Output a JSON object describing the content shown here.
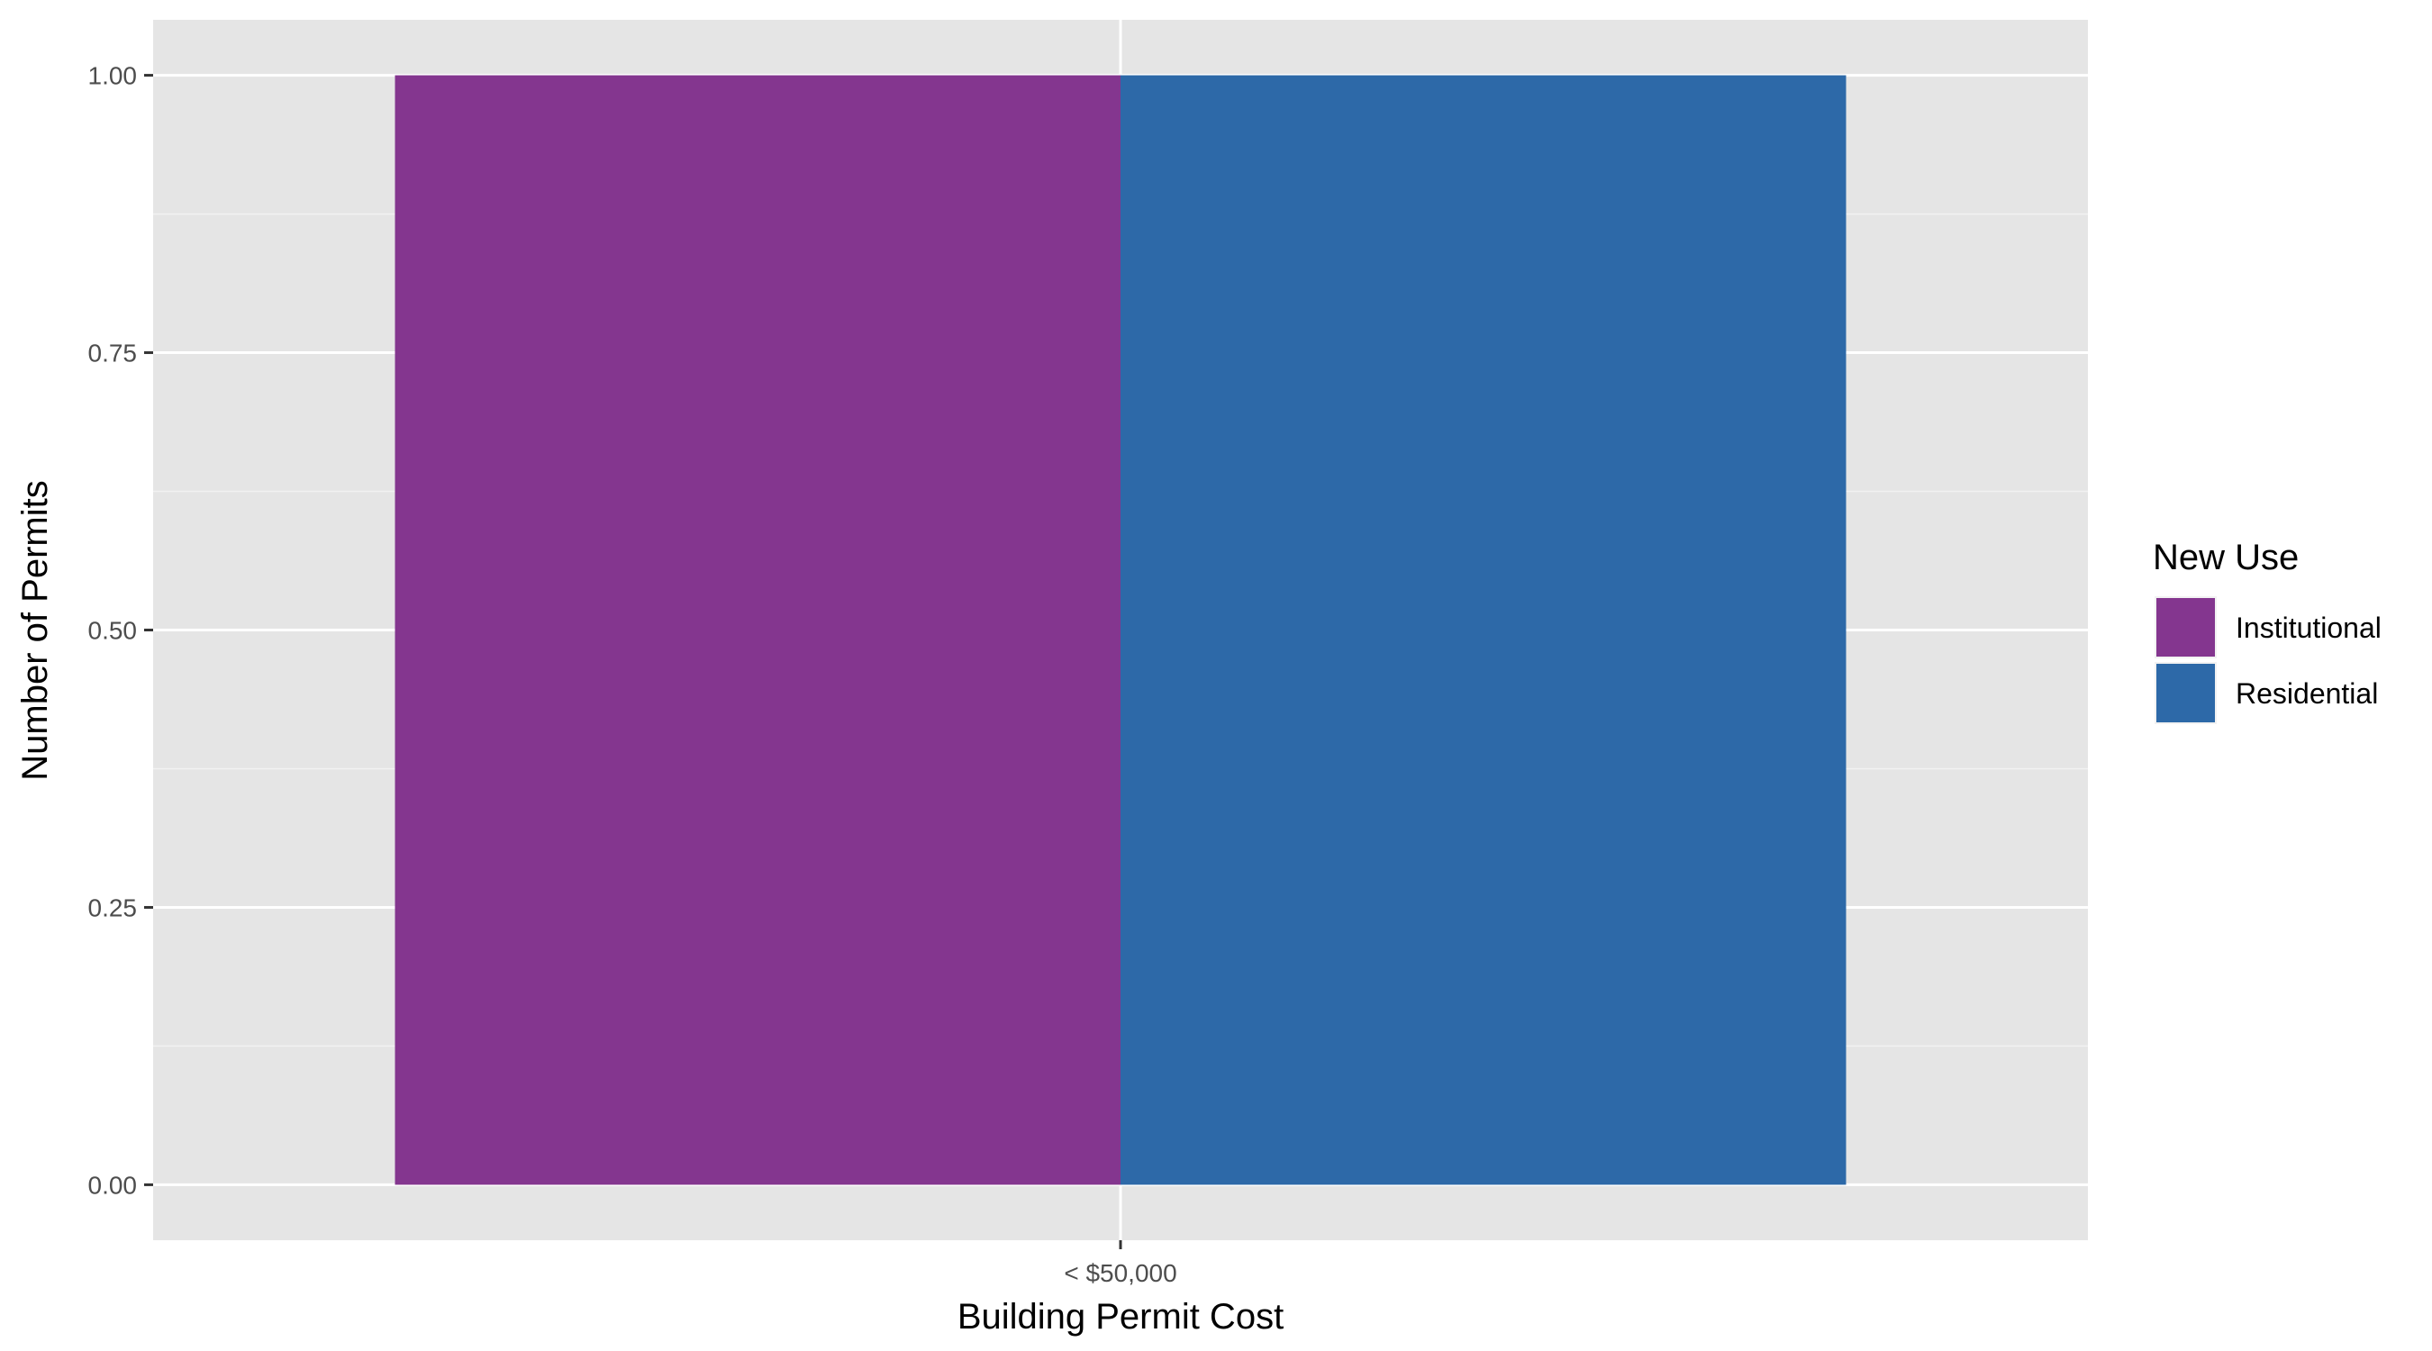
{
  "colors": {
    "panel_background": "#e5e5e5",
    "grid_major": "#ffffff",
    "grid_minor": "#f2f2f2",
    "tick_text": "#4d4d4d",
    "axis_tick": "#333333"
  },
  "chart_data": {
    "type": "bar",
    "bar_position": "dodge",
    "categories": [
      "< $50,000"
    ],
    "series": [
      {
        "name": "Institutional",
        "values": [
          1
        ],
        "color": "#84368f"
      },
      {
        "name": "Residential",
        "values": [
          1
        ],
        "color": "#2d69a8"
      }
    ],
    "xlabel": "Building Permit Cost",
    "ylabel": "Number of Permits",
    "ylim": [
      -0.05,
      1.05
    ],
    "yticks": [
      "0.00",
      "0.25",
      "0.50",
      "0.75",
      "1.00"
    ],
    "ytick_values": [
      0,
      0.25,
      0.5,
      0.75,
      1
    ],
    "grid": true,
    "legend": {
      "title": "New Use",
      "position": "right"
    }
  }
}
